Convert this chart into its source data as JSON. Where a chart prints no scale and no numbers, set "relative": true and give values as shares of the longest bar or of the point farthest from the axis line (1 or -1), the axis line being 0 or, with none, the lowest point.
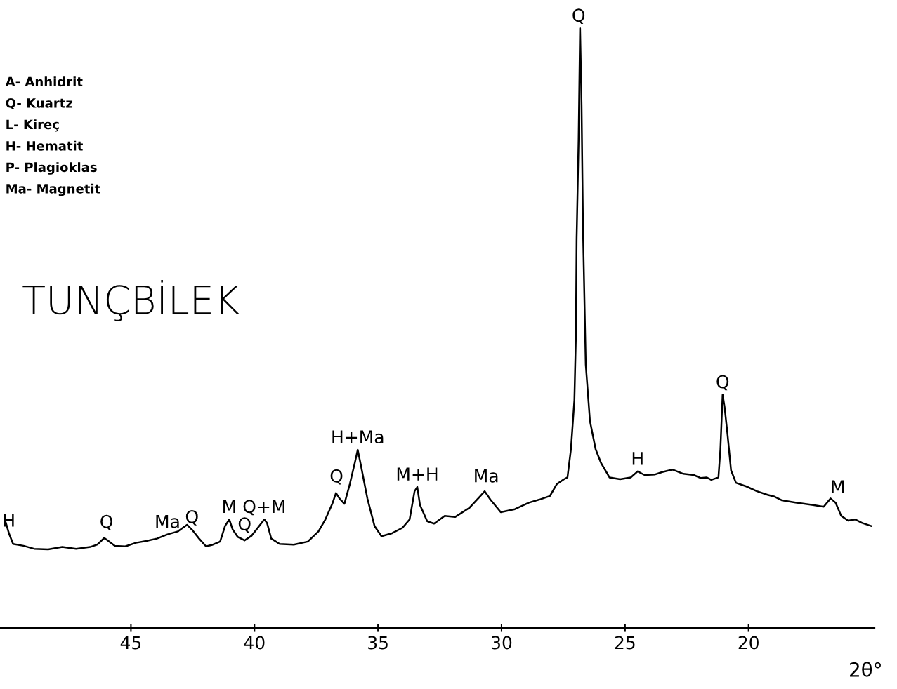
{
  "chart_data": {
    "type": "line",
    "relative": true,
    "title": "TUNÇBİLEK",
    "xlabel": "2θ°",
    "color": "#000000",
    "x": [
      50.06,
      49.94,
      49.77,
      49.35,
      48.92,
      48.35,
      47.78,
      47.22,
      46.65,
      46.36,
      46.08,
      45.94,
      45.65,
      45.23,
      44.8,
      44.38,
      43.95,
      43.52,
      43.1,
      42.9,
      42.73,
      42.53,
      42.24,
      41.96,
      41.68,
      41.39,
      41.19,
      41.02,
      40.88,
      40.68,
      40.4,
      40.11,
      39.6,
      39.49,
      39.32,
      38.98,
      38.41,
      37.84,
      37.41,
      37.13,
      36.85,
      36.7,
      36.56,
      36.36,
      36.14,
      35.94,
      35.82,
      35.71,
      35.43,
      35.14,
      34.86,
      34.43,
      34.01,
      33.72,
      33.52,
      33.41,
      33.3,
      33.01,
      32.73,
      32.3,
      31.88,
      31.31,
      30.88,
      30.68,
      30.45,
      30.03,
      29.46,
      28.89,
      28.47,
      28.04,
      27.76,
      27.47,
      27.33,
      27.19,
      27.05,
      26.99,
      26.96,
      26.88,
      26.82,
      26.76,
      26.7,
      26.59,
      26.42,
      26.19,
      25.97,
      25.63,
      25.2,
      24.77,
      24.49,
      24.21,
      23.78,
      23.49,
      23.07,
      22.64,
      22.22,
      21.93,
      21.7,
      21.51,
      21.22,
      21.14,
      21.05,
      20.97,
      20.85,
      20.71,
      20.51,
      20.09,
      19.66,
      19.23,
      18.95,
      18.66,
      18.1,
      17.39,
      16.96,
      16.68,
      16.48,
      16.25,
      15.97,
      15.68,
      15.4,
      15.03
    ],
    "values": [
      0.175,
      0.158,
      0.14,
      0.137,
      0.132,
      0.131,
      0.135,
      0.132,
      0.135,
      0.139,
      0.15,
      0.146,
      0.137,
      0.136,
      0.142,
      0.145,
      0.149,
      0.156,
      0.161,
      0.167,
      0.172,
      0.164,
      0.149,
      0.136,
      0.139,
      0.144,
      0.17,
      0.181,
      0.164,
      0.152,
      0.146,
      0.154,
      0.181,
      0.175,
      0.149,
      0.14,
      0.139,
      0.144,
      0.161,
      0.181,
      0.207,
      0.225,
      0.216,
      0.207,
      0.24,
      0.275,
      0.297,
      0.275,
      0.216,
      0.17,
      0.153,
      0.158,
      0.167,
      0.181,
      0.228,
      0.235,
      0.205,
      0.178,
      0.174,
      0.187,
      0.185,
      0.2,
      0.219,
      0.228,
      0.214,
      0.193,
      0.198,
      0.209,
      0.214,
      0.22,
      0.24,
      0.248,
      0.251,
      0.298,
      0.38,
      0.485,
      0.649,
      0.813,
      1.0,
      0.871,
      0.661,
      0.439,
      0.345,
      0.298,
      0.275,
      0.251,
      0.248,
      0.251,
      0.261,
      0.255,
      0.256,
      0.26,
      0.264,
      0.257,
      0.255,
      0.25,
      0.251,
      0.247,
      0.251,
      0.298,
      0.389,
      0.368,
      0.322,
      0.263,
      0.242,
      0.236,
      0.228,
      0.222,
      0.219,
      0.213,
      0.209,
      0.205,
      0.202,
      0.216,
      0.209,
      0.187,
      0.179,
      0.181,
      0.175,
      0.17
    ],
    "xlim": [
      50.3,
      14.9
    ],
    "xticks": [
      45,
      40,
      35,
      30,
      25,
      20
    ],
    "tick_labels": "x",
    "grid": false,
    "legend": false,
    "line_style": "solid",
    "marker": "none",
    "annotations": [
      "A- Anhidrit",
      "Q- Kuartz",
      "L- Kireç",
      "H- Hematit",
      "P- Plagioklas",
      "Ma- Magnetit",
      {
        "text": "H",
        "x": 49.94,
        "y": 0.158
      },
      {
        "text": "Q",
        "x": 45.99,
        "y": 0.156
      },
      {
        "text": "Ma",
        "x": 43.52,
        "y": 0.156
      },
      {
        "text": "Q",
        "x": 42.53,
        "y": 0.164
      },
      {
        "text": "M",
        "x": 41.02,
        "y": 0.181
      },
      {
        "text": "Q",
        "x": 40.4,
        "y": 0.152
      },
      {
        "text": "Q+M",
        "x": 39.6,
        "y": 0.181
      },
      {
        "text": "Q",
        "x": 36.68,
        "y": 0.232
      },
      {
        "text": "H+Ma",
        "x": 35.82,
        "y": 0.297
      },
      {
        "text": "M+H",
        "x": 33.41,
        "y": 0.235
      },
      {
        "text": "Ma",
        "x": 30.62,
        "y": 0.232
      },
      {
        "text": "Q",
        "x": 26.88,
        "y": 1.0
      },
      {
        "text": "H",
        "x": 24.49,
        "y": 0.261
      },
      {
        "text": "Q",
        "x": 21.05,
        "y": 0.389
      },
      {
        "text": "M",
        "x": 16.39,
        "y": 0.214
      }
    ]
  }
}
